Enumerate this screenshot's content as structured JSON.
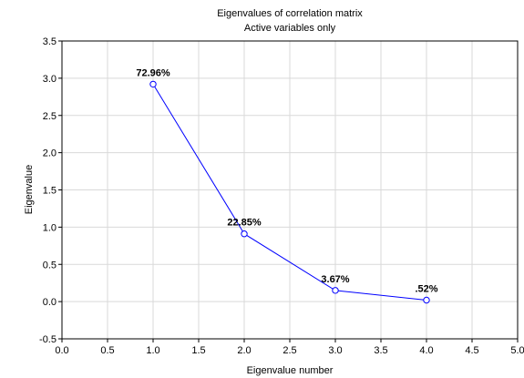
{
  "chart_data": {
    "type": "line",
    "title": "Eigenvalues of correlation matrix",
    "subtitle": "Active variables only",
    "xlabel": "Eigenvalue number",
    "ylabel": "Eigenvalue",
    "xlim": [
      0,
      5
    ],
    "ylim": [
      -0.5,
      3.5
    ],
    "xticks": [
      "0.0",
      "0.5",
      "1.0",
      "1.5",
      "2.0",
      "2.5",
      "3.0",
      "3.5",
      "4.0",
      "4.5",
      "5.0"
    ],
    "yticks": [
      "-0.5",
      "0.0",
      "0.5",
      "1.0",
      "1.5",
      "2.0",
      "2.5",
      "3.0",
      "3.5"
    ],
    "grid": true,
    "series": [
      {
        "x": [
          1,
          2,
          3,
          4
        ],
        "y": [
          2.92,
          0.91,
          0.15,
          0.02
        ],
        "labels": [
          "72.96%",
          "22.85%",
          "3.67%",
          ".52%"
        ],
        "color": "#0000ff"
      }
    ]
  }
}
